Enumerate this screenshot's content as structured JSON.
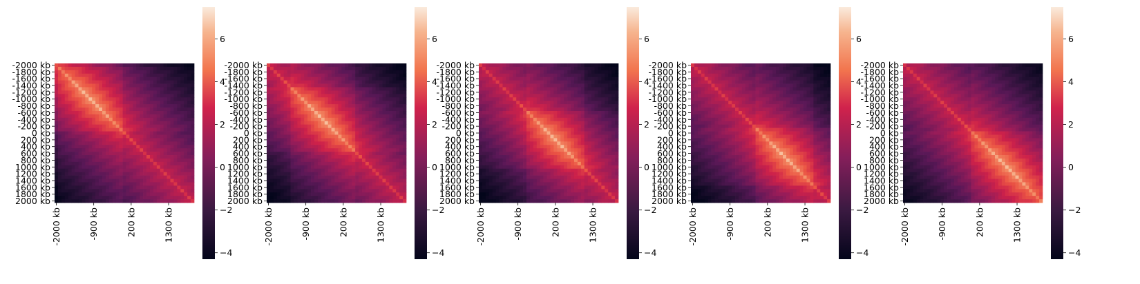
{
  "chart_data": {
    "type": "heatmap",
    "panel_count": 5,
    "bins": 41,
    "y_tick_labels": [
      "-2000 kb",
      "-1800 kb",
      "-1600 kb",
      "-1400 kb",
      "-1200 kb",
      "-1000 kb",
      "-800 kb",
      "-600 kb",
      "-400 kb",
      "-200 kb",
      "0 kb",
      "200 kb",
      "400 kb",
      "600 kb",
      "800 kb",
      "1000 kb",
      "1200 kb",
      "1400 kb",
      "1600 kb",
      "1800 kb",
      "2000 kb"
    ],
    "x_tick_labels": [
      "-2000 kb",
      "-900 kb",
      "200 kb",
      "1300 kb"
    ],
    "x_tick_bins": [
      0,
      11,
      22,
      33
    ],
    "colorbar_ticks": [
      -4,
      -2,
      0,
      2,
      4,
      6
    ],
    "colorbar_range": [
      -4.3,
      7.5
    ],
    "colormap": "rocket",
    "panels": [
      {
        "hot_center_bin": 10,
        "hot_halfwidth": 9
      },
      {
        "hot_center_bin": 16,
        "hot_halfwidth": 9
      },
      {
        "hot_center_bin": 22,
        "hot_halfwidth": 8
      },
      {
        "hot_center_bin": 27,
        "hot_halfwidth": 8
      },
      {
        "hot_center_bin": 30,
        "hot_halfwidth": 10
      }
    ]
  }
}
